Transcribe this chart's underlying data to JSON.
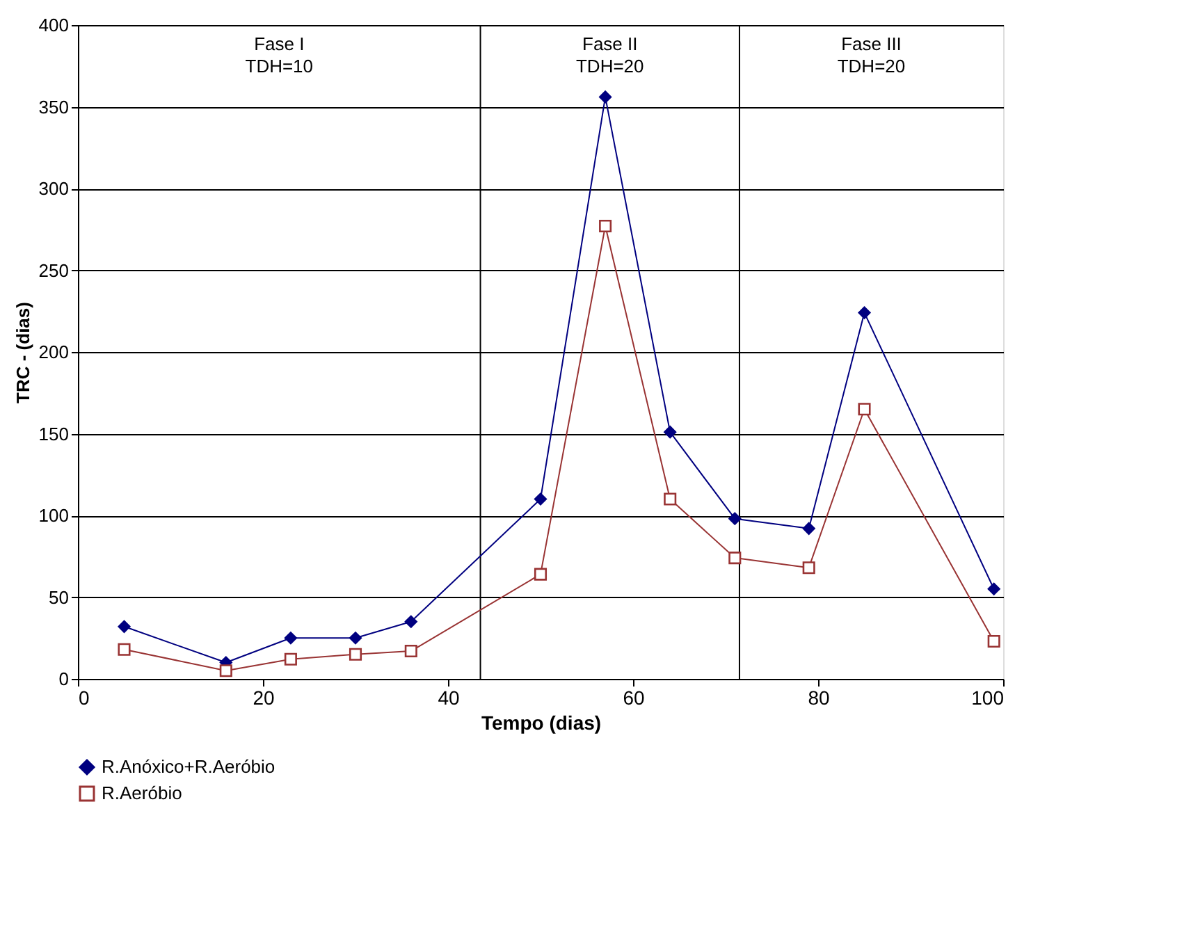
{
  "chart_data": {
    "type": "line",
    "xlabel": "Tempo (dias)",
    "ylabel": "TRC - (dias)",
    "xlim": [
      0,
      100
    ],
    "xticks": [
      0,
      20,
      40,
      60,
      80,
      100
    ],
    "ylim": [
      0,
      400
    ],
    "yticks": [
      0,
      50,
      100,
      150,
      200,
      250,
      300,
      350,
      400
    ],
    "grid": "y",
    "legend": "bottom",
    "series": [
      {
        "name": "R.Anóxico+R.Aeróbio",
        "color": "#000080",
        "marker": "diamond",
        "x": [
          5,
          16,
          23,
          30,
          36,
          50,
          57,
          64,
          71,
          79,
          85,
          99
        ],
        "values": [
          32,
          10,
          25,
          25,
          35,
          110,
          356,
          151,
          98,
          92,
          224,
          55
        ]
      },
      {
        "name": "R.Aeróbio",
        "color": "#993333",
        "marker": "square",
        "x": [
          5,
          16,
          23,
          30,
          36,
          50,
          57,
          64,
          71,
          79,
          85,
          99
        ],
        "values": [
          18,
          5,
          12,
          15,
          17,
          64,
          277,
          110,
          74,
          68,
          165,
          23
        ]
      }
    ],
    "ref_lines": [
      {
        "axis": "x",
        "value": 43.5
      },
      {
        "axis": "x",
        "value": 71.5
      }
    ],
    "annotations": [
      "Fase I\nTDH=10",
      "Fase II\nTDH=20",
      "Fase III\nTDH=20"
    ]
  }
}
